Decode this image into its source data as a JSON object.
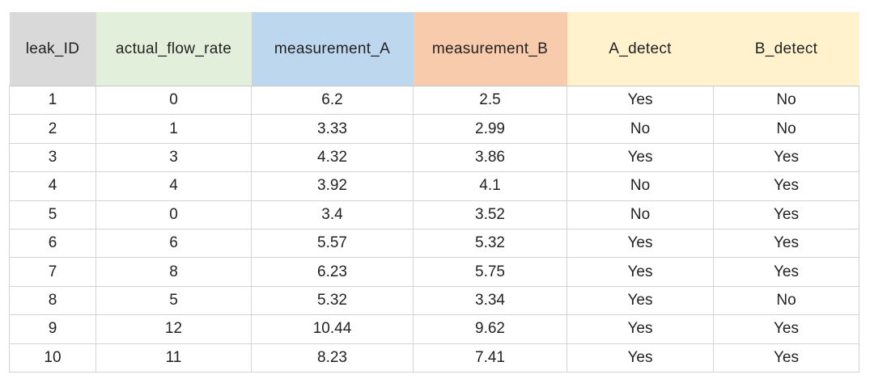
{
  "table": {
    "headers": [
      {
        "label": "leak_ID",
        "color": "#d9d9d9"
      },
      {
        "label": "actual_flow_rate",
        "color": "#e2efda"
      },
      {
        "label": "measurement_A",
        "color": "#bdd7ee"
      },
      {
        "label": "measurement_B",
        "color": "#f8cbad"
      },
      {
        "label": "A_detect",
        "color": "#fff2cc"
      },
      {
        "label": "B_detect",
        "color": "#fff2cc"
      }
    ],
    "rows": [
      [
        "1",
        "0",
        "6.2",
        "2.5",
        "Yes",
        "No"
      ],
      [
        "2",
        "1",
        "3.33",
        "2.99",
        "No",
        "No"
      ],
      [
        "3",
        "3",
        "4.32",
        "3.86",
        "Yes",
        "Yes"
      ],
      [
        "4",
        "4",
        "3.92",
        "4.1",
        "No",
        "Yes"
      ],
      [
        "5",
        "0",
        "3.4",
        "3.52",
        "No",
        "Yes"
      ],
      [
        "6",
        "6",
        "5.57",
        "5.32",
        "Yes",
        "Yes"
      ],
      [
        "7",
        "8",
        "6.23",
        "5.75",
        "Yes",
        "Yes"
      ],
      [
        "8",
        "5",
        "5.32",
        "3.34",
        "Yes",
        "No"
      ],
      [
        "9",
        "12",
        "10.44",
        "9.62",
        "Yes",
        "Yes"
      ],
      [
        "10",
        "11",
        "8.23",
        "7.41",
        "Yes",
        "Yes"
      ]
    ]
  }
}
